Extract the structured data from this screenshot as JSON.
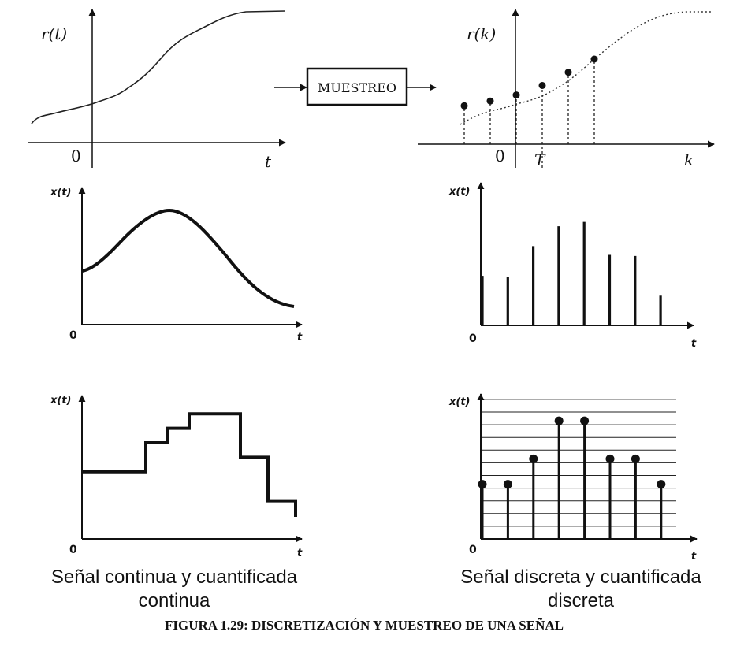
{
  "top_left": {
    "y_label": "r(t)",
    "origin": "0",
    "x_label": "t"
  },
  "sampler": {
    "label": "MUESTREO"
  },
  "top_right": {
    "y_label": "r(k)",
    "origin": "0",
    "period": "T",
    "x_label": "k",
    "sample_values": [
      0.22,
      0.3,
      0.4,
      0.56,
      0.78,
      1.0
    ]
  },
  "panel_continuous": {
    "y_label": "x(t)",
    "origin": "0",
    "x_label": "t"
  },
  "panel_discrete": {
    "y_label": "x(t)",
    "origin": "0",
    "x_label": "t",
    "sample_values": [
      0.45,
      0.44,
      0.72,
      0.9,
      0.94,
      0.64,
      0.63,
      0.27
    ]
  },
  "panel_quantized": {
    "y_label": "x(t)",
    "origin": "0",
    "x_label": "t",
    "levels": [
      3,
      3,
      5,
      6,
      7,
      7,
      4,
      1,
      0
    ]
  },
  "panel_digital": {
    "y_label": "x(t)",
    "origin": "0",
    "x_label": "t",
    "levels": [
      4,
      4,
      6,
      9,
      9,
      6,
      6,
      4
    ]
  },
  "captions": {
    "left_line1": "Señal continua y cuantificada",
    "left_line2": "continua",
    "right_line1": "Señal discreta y cuantificada",
    "right_line2": "discreta"
  },
  "figure_title": "FIGURA 1.29: DISCRETIZACIÓN Y MUESTREO DE UNA SEÑAL"
}
